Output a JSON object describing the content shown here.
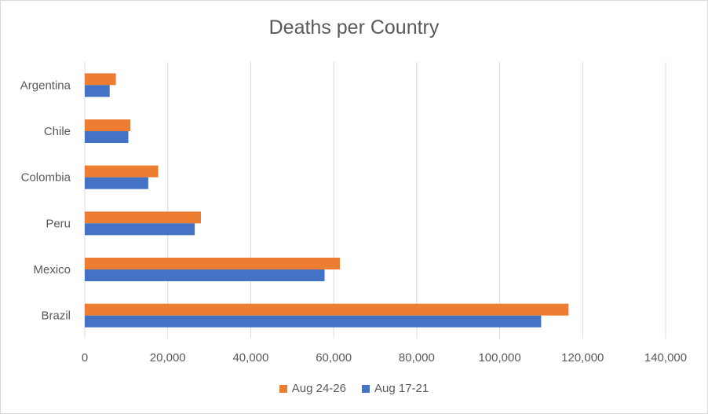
{
  "chart_data": {
    "type": "bar",
    "orientation": "horizontal",
    "title": "Deaths per Country",
    "categories": [
      "Brazil",
      "Mexico",
      "Peru",
      "Colombia",
      "Chile",
      "Argentina"
    ],
    "series": [
      {
        "name": "Aug 24-26",
        "color": "#ED7D31",
        "values": [
          116600,
          61500,
          28000,
          17700,
          11000,
          7500
        ]
      },
      {
        "name": "Aug 17-21",
        "color": "#4472C4",
        "values": [
          110000,
          57800,
          26500,
          15300,
          10500,
          6000
        ]
      }
    ],
    "xlim": [
      0,
      140000
    ],
    "xticks": [
      "0",
      "20,000",
      "40,000",
      "60,000",
      "80,000",
      "100,000",
      "120,000",
      "140,000"
    ],
    "xtick_values": [
      0,
      20000,
      40000,
      60000,
      80000,
      100000,
      120000,
      140000
    ],
    "grid": true,
    "legend_position": "bottom",
    "xlabel": "",
    "ylabel": ""
  }
}
